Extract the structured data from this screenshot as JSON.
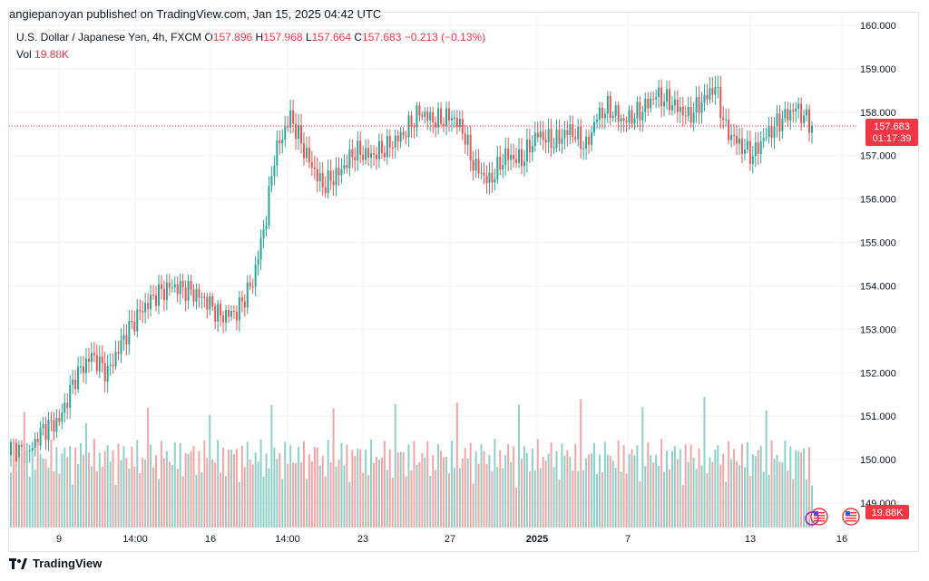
{
  "header": {
    "published": "angiepanoyan published on TradingView.com, Jan 15, 2025 04:42 UTC"
  },
  "legend": {
    "symbol": "U.S. Dollar / Japanese Yen, 4h, FXCM",
    "o_label": "O",
    "o_value": "157.896",
    "h_label": "H",
    "h_value": "157.968",
    "l_label": "L",
    "l_value": "157.664",
    "c_label": "C",
    "c_value": "157.683",
    "change": "−0.213 (−0.13%)",
    "vol_label": "Vol",
    "vol_value": "19.88K"
  },
  "price_badge": {
    "price": "157.683",
    "countdown": "01:17:39"
  },
  "volume_badge": {
    "value": "19.88K"
  },
  "footer": {
    "brand": "TradingView"
  },
  "colors": {
    "up": "#26a69a",
    "down": "#ef5350",
    "vol_up": "#8fd1c8",
    "vol_down": "#f4a6a6",
    "last_price": "#f23645",
    "grid": "#f0f3fa"
  },
  "chart_data": {
    "type": "candlestick",
    "title": "U.S. Dollar / Japanese Yen, 4h, FXCM",
    "y_ticks": [
      "160.000",
      "159.000",
      "158.000",
      "157.000",
      "156.000",
      "155.000",
      "154.000",
      "153.000",
      "152.000",
      "151.000",
      "150.000",
      "149.000"
    ],
    "ylim": [
      148.4,
      160.0
    ],
    "x_ticks": [
      "9",
      "14:00",
      "16",
      "14:00",
      "23",
      "27",
      "2025",
      "7",
      "13",
      "16"
    ],
    "last_price": 157.683,
    "anchors_close": [
      [
        0,
        150.3
      ],
      [
        6,
        150.1
      ],
      [
        12,
        150.7
      ],
      [
        18,
        150.9
      ],
      [
        24,
        151.9
      ],
      [
        30,
        152.4
      ],
      [
        36,
        152.0
      ],
      [
        42,
        152.8
      ],
      [
        48,
        153.4
      ],
      [
        54,
        153.8
      ],
      [
        60,
        154.0
      ],
      [
        66,
        153.9
      ],
      [
        72,
        153.7
      ],
      [
        78,
        153.3
      ],
      [
        84,
        153.4
      ],
      [
        90,
        154.1
      ],
      [
        95,
        155.6
      ],
      [
        98,
        157.0
      ],
      [
        104,
        157.9
      ],
      [
        110,
        157.0
      ],
      [
        116,
        156.3
      ],
      [
        122,
        156.6
      ],
      [
        128,
        157.1
      ],
      [
        134,
        157.0
      ],
      [
        140,
        157.2
      ],
      [
        146,
        157.5
      ],
      [
        152,
        158.0
      ],
      [
        158,
        157.8
      ],
      [
        164,
        157.9
      ],
      [
        168,
        157.6
      ],
      [
        172,
        156.8
      ],
      [
        178,
        156.4
      ],
      [
        184,
        157.0
      ],
      [
        190,
        156.9
      ],
      [
        196,
        157.5
      ],
      [
        202,
        157.3
      ],
      [
        208,
        157.6
      ],
      [
        214,
        157.2
      ],
      [
        218,
        157.9
      ],
      [
        222,
        158.1
      ],
      [
        228,
        157.8
      ],
      [
        234,
        158.0
      ],
      [
        240,
        158.4
      ],
      [
        246,
        158.2
      ],
      [
        252,
        157.9
      ],
      [
        258,
        158.3
      ],
      [
        262,
        158.6
      ],
      [
        266,
        157.6
      ],
      [
        272,
        157.2
      ],
      [
        276,
        157.0
      ],
      [
        280,
        157.4
      ],
      [
        286,
        157.8
      ],
      [
        292,
        158.1
      ],
      [
        298,
        157.7
      ]
    ],
    "volume_ylim": [
      0,
      60000
    ],
    "volume_last": 19880
  }
}
